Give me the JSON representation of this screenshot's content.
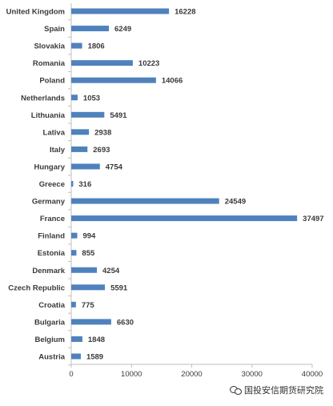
{
  "chart_data": {
    "type": "bar",
    "orientation": "horizontal",
    "categories": [
      "United Kingdom",
      "Spain",
      "Slovakia",
      "Romania",
      "Poland",
      "Netherlands",
      "Lithuania",
      "Lativa",
      "Italy",
      "Hungary",
      "Greece",
      "Germany",
      "France",
      "Finland",
      "Estonia",
      "Denmark",
      "Czech Republic",
      "Croatia",
      "Bulgaria",
      "Belgium",
      "Austria"
    ],
    "values": [
      16228,
      6249,
      1806,
      10223,
      14066,
      1053,
      5491,
      2938,
      2693,
      4754,
      316,
      24549,
      37497,
      994,
      855,
      4254,
      5591,
      775,
      6630,
      1848,
      1589
    ],
    "xlim": [
      0,
      40000
    ],
    "xticks": [
      0,
      10000,
      20000,
      30000,
      40000
    ],
    "grid": false,
    "bar_color": "#4f81bd",
    "axis_color": "#bfbfbf"
  },
  "watermark": {
    "text": "国投安信期货研究院",
    "icon": "wechat-icon"
  }
}
